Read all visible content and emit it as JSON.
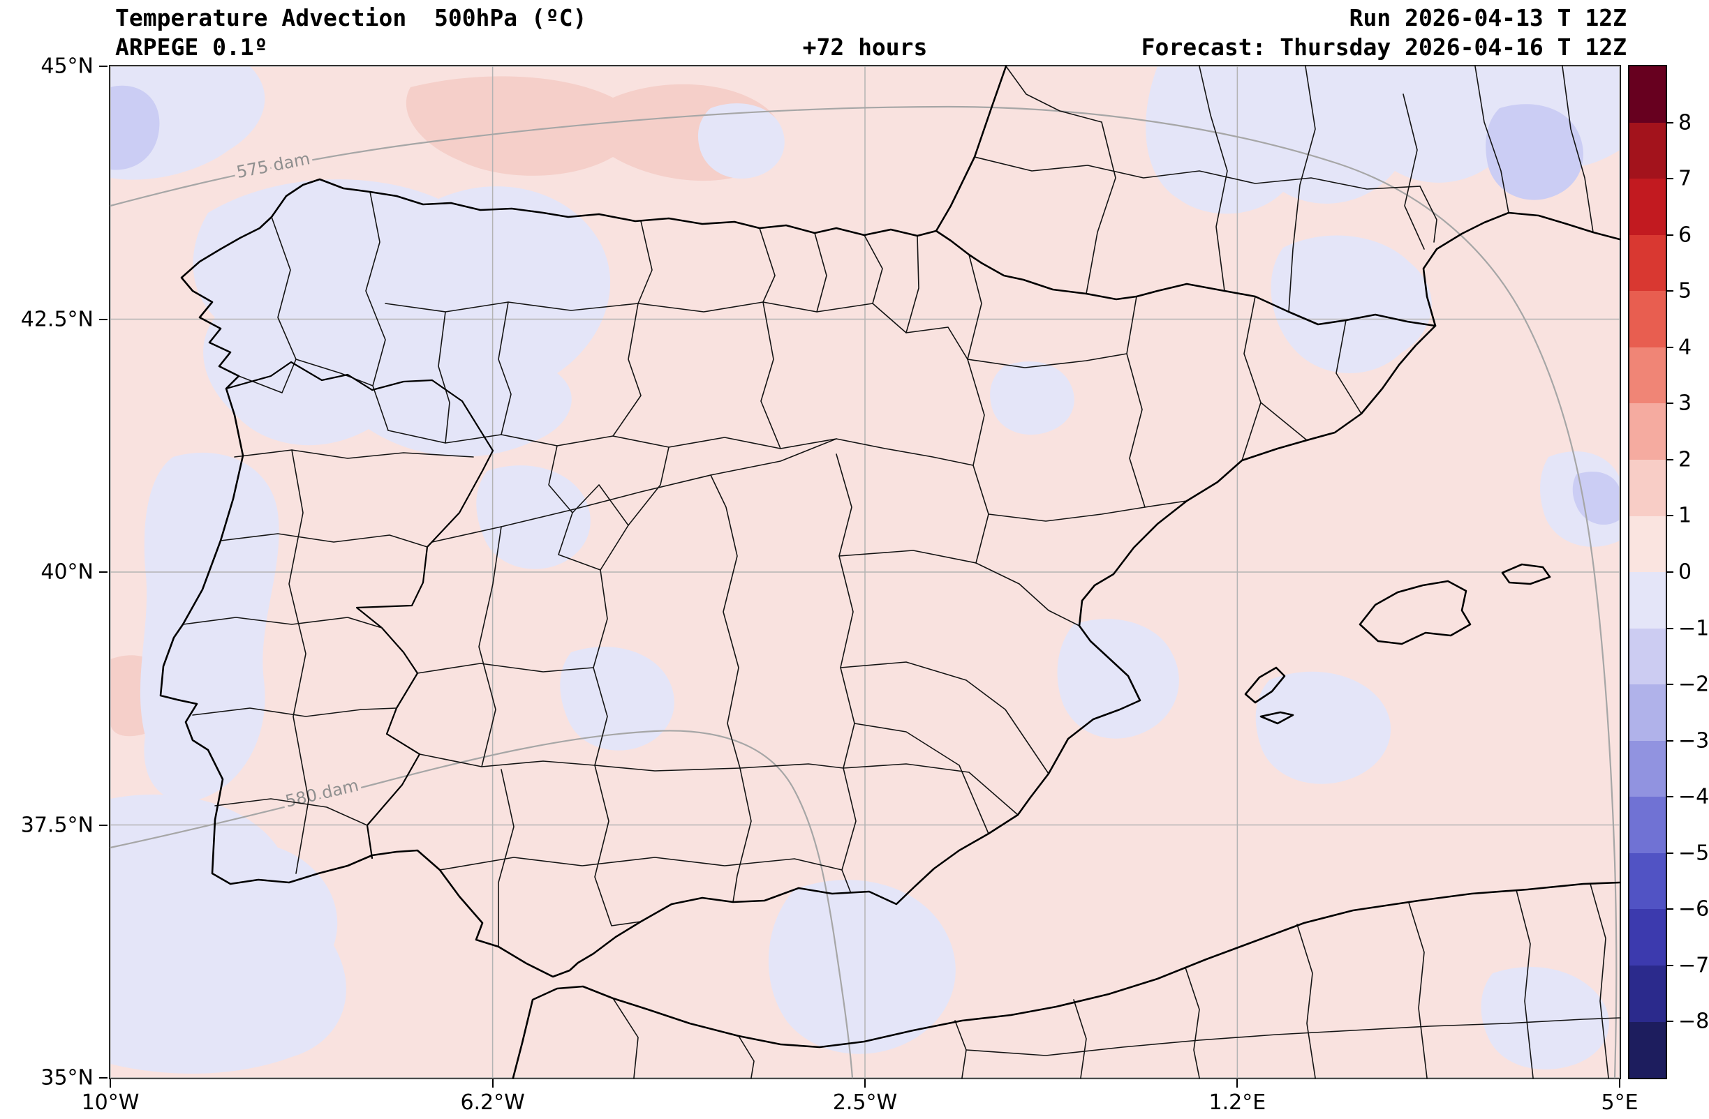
{
  "header": {
    "title": "Temperature Advection  500hPa (ºC)",
    "model": "ARPEGE 0.1º",
    "lead": "+72 hours",
    "run": "Run 2026-04-13 T 12Z",
    "forecast": "Forecast: Thursday 2026-04-16 T 12Z"
  },
  "axes": {
    "x_ticks": [
      {
        "label": "10°W",
        "f": 0
      },
      {
        "label": "6.2°W",
        "f": 0.2533
      },
      {
        "label": "2.5°W",
        "f": 0.5
      },
      {
        "label": "1.2°E",
        "f": 0.7467
      },
      {
        "label": "5°E",
        "f": 1
      }
    ],
    "y_ticks": [
      {
        "label": "45°N",
        "f": 0
      },
      {
        "label": "42.5°N",
        "f": 0.25
      },
      {
        "label": "40°N",
        "f": 0.5
      },
      {
        "label": "37.5°N",
        "f": 0.75
      },
      {
        "label": "35°N",
        "f": 1
      }
    ]
  },
  "colorbar": {
    "tick_labels": [
      "8",
      "7",
      "6",
      "5",
      "4",
      "3",
      "2",
      "1",
      "0",
      "−1",
      "−2",
      "−3",
      "−4",
      "−5",
      "−6",
      "−7",
      "−8"
    ],
    "colors": [
      "#67001f",
      "#a3131c",
      "#c21a20",
      "#d93831",
      "#e85e50",
      "#f08576",
      "#f5aba0",
      "#f8cdc6",
      "#fae4e0",
      "#e4e5f8",
      "#ccccf2",
      "#b0b2ea",
      "#9193e0",
      "#7072d4",
      "#5153c4",
      "#3c3aae",
      "#2b2a8c",
      "#1d1d5e"
    ]
  },
  "contour_labels": [
    {
      "text": "575 dam"
    },
    {
      "text": "580 dam"
    }
  ],
  "map_colors": {
    "weak_positive": "#f9e2df",
    "positive_1_2": "#f5cfc9",
    "weak_negative": "#e4e5f8",
    "negative_1_2": "#cbcdf4"
  },
  "chart_data": {
    "type": "heatmap",
    "title": "Temperature Advection  500hPa (ºC)",
    "model": "ARPEGE 0.1º",
    "lead_hours": 72,
    "run": "2026-04-13 T 12Z",
    "forecast_valid": "Thursday 2026-04-16 T 12Z",
    "units": "ºC",
    "x_ticks": [
      "10°W",
      "6.2°W",
      "2.5°W",
      "1.2°E",
      "5°E"
    ],
    "y_ticks": [
      "45°N",
      "42.5°N",
      "40°N",
      "37.5°N",
      "35°N"
    ],
    "extent": {
      "lon_min": -10,
      "lon_max": 5,
      "lat_min": 35,
      "lat_max": 45
    },
    "grid": true,
    "legend_position": "right",
    "colorbar_ticks": [
      8,
      7,
      6,
      5,
      4,
      3,
      2,
      1,
      0,
      -1,
      -2,
      -3,
      -4,
      -5,
      -6,
      -7,
      -8
    ],
    "colorbar_range": [
      -9,
      9
    ],
    "geopotential_contour_labels": [
      "575 dam",
      "580 dam"
    ],
    "field_summary": "Weak advection overall: mostly 0 to +1 ºC (pale pink) across Iberia and surrounding seas, with 0 to −1 ºC patches (pale blue) over NW Iberia and Castilla y León, the Portuguese west coast, the SW Atlantic corner, NE Spain and S France, the Balearic area and the Alboran Sea; small −1 to −2 ºC spots at the NW and NE corners and along the eastern edge."
  }
}
